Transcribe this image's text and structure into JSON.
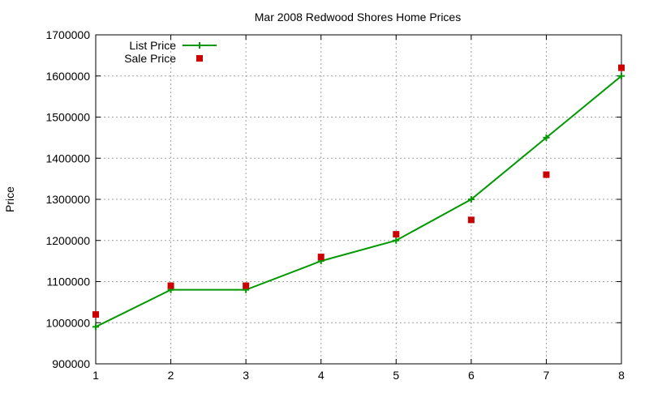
{
  "chart_data": {
    "type": "line",
    "title": "Mar 2008 Redwood Shores Home Prices",
    "xlabel": "",
    "ylabel": "Price",
    "x": [
      1,
      2,
      3,
      4,
      5,
      6,
      7,
      8
    ],
    "xlim": [
      1,
      8
    ],
    "ylim": [
      900000,
      1700000
    ],
    "x_ticks": [
      "1",
      "2",
      "3",
      "4",
      "5",
      "6",
      "7",
      "8"
    ],
    "y_ticks": [
      "900000",
      "1000000",
      "1100000",
      "1200000",
      "1300000",
      "1400000",
      "1500000",
      "1600000",
      "1700000"
    ],
    "grid": true,
    "legend_position": "top-left",
    "series": [
      {
        "name": "List Price",
        "style": "linespoints",
        "marker": "plus",
        "color": "#009900",
        "values": [
          990000,
          1080000,
          1080000,
          1150000,
          1200000,
          1300000,
          1450000,
          1600000
        ]
      },
      {
        "name": "Sale Price",
        "style": "points",
        "marker": "square",
        "color": "#cc0000",
        "values": [
          1020000,
          1090000,
          1090000,
          1160000,
          1215000,
          1250000,
          1360000,
          1620000
        ]
      }
    ]
  }
}
